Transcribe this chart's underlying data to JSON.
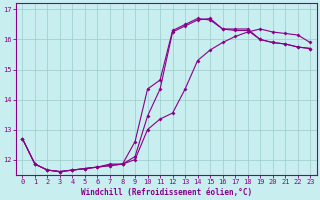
{
  "xlabel": "Windchill (Refroidissement éolien,°C)",
  "background_color": "#c8eef0",
  "line_color": "#880088",
  "grid_color": "#99cccc",
  "xlim": [
    -0.5,
    23.5
  ],
  "ylim": [
    11.5,
    17.2
  ],
  "yticks": [
    12,
    13,
    14,
    15,
    16,
    17
  ],
  "xticks": [
    0,
    1,
    2,
    3,
    4,
    5,
    6,
    7,
    8,
    9,
    10,
    11,
    12,
    13,
    14,
    15,
    16,
    17,
    18,
    19,
    20,
    21,
    22,
    23
  ],
  "curve1_x": [
    0,
    1,
    2,
    3,
    4,
    5,
    6,
    7,
    8,
    9,
    10,
    11,
    12,
    13,
    14,
    15,
    16,
    17,
    18,
    19,
    20,
    21,
    22,
    23
  ],
  "curve1_y": [
    12.7,
    11.85,
    11.65,
    11.6,
    11.65,
    11.7,
    11.75,
    11.8,
    11.85,
    12.0,
    13.0,
    13.35,
    13.55,
    14.35,
    15.3,
    15.65,
    15.9,
    16.1,
    16.25,
    16.35,
    16.25,
    16.2,
    16.15,
    15.9
  ],
  "curve2_x": [
    0,
    1,
    2,
    3,
    4,
    5,
    6,
    7,
    8,
    9,
    10,
    11,
    12,
    13,
    14,
    15,
    16,
    17,
    18,
    19,
    20,
    21,
    22,
    23
  ],
  "curve2_y": [
    12.7,
    11.85,
    11.65,
    11.6,
    11.65,
    11.7,
    11.75,
    11.8,
    11.85,
    12.1,
    13.45,
    14.35,
    16.25,
    16.45,
    16.65,
    16.7,
    16.35,
    16.35,
    16.35,
    16.0,
    15.9,
    15.85,
    15.75,
    15.7
  ],
  "curve3_x": [
    0,
    1,
    2,
    3,
    4,
    5,
    6,
    7,
    8,
    9,
    10,
    11,
    12,
    13,
    14,
    15,
    16,
    17,
    18,
    19,
    20,
    21,
    22,
    23
  ],
  "curve3_y": [
    12.7,
    11.85,
    11.65,
    11.6,
    11.65,
    11.7,
    11.75,
    11.85,
    11.85,
    12.6,
    14.35,
    14.65,
    16.3,
    16.5,
    16.7,
    16.65,
    16.35,
    16.3,
    16.3,
    16.0,
    15.9,
    15.85,
    15.75,
    15.7
  ]
}
